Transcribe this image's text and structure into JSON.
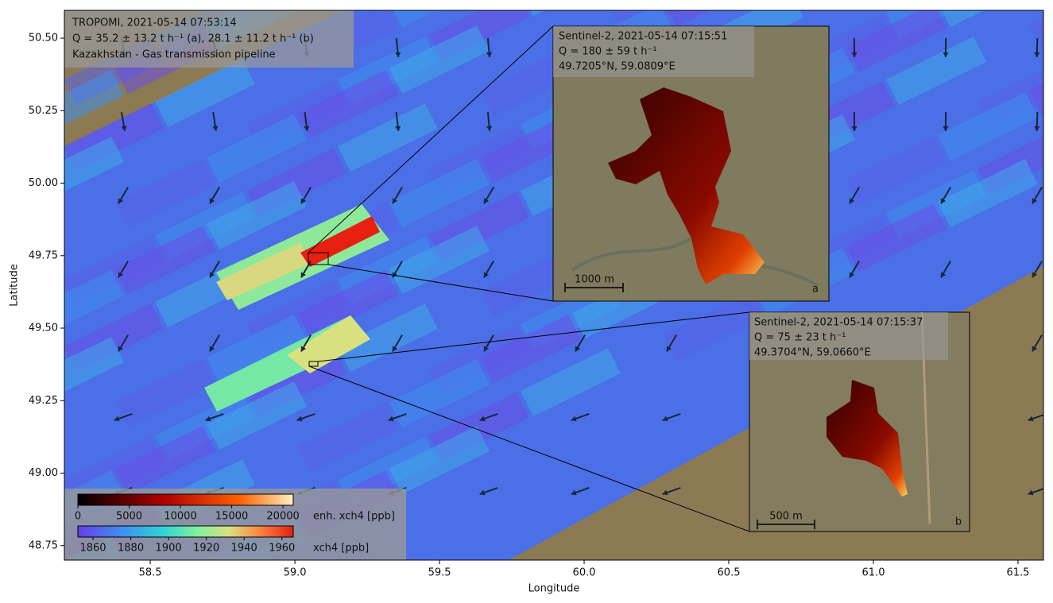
{
  "chart_data": {
    "type": "map",
    "xlabel": "Longitude",
    "ylabel": "Latitude",
    "xlim": [
      58.203,
      61.588
    ],
    "ylim": [
      48.7,
      50.596
    ],
    "xticks": [
      58.5,
      {
        "value": 59,
        "label": "59.0"
      },
      59.5,
      {
        "value": 60,
        "label": "60.0"
      },
      60.5,
      {
        "value": 61,
        "label": "61.0"
      },
      61.5
    ],
    "yticks": [
      48.75,
      {
        "value": 49,
        "label": "49.00"
      },
      49.25,
      {
        "value": 49.5,
        "label": "49.50"
      },
      49.75,
      {
        "value": 50,
        "label": "50.00"
      },
      50.25,
      {
        "value": 50.5,
        "label": "50.50"
      }
    ],
    "info": [
      "TROPOMI,  2021-05-14  07:53:14",
      "Q = 35.2 ± 13.2 t h⁻¹ (a),  28.1 ± 11.2 t h⁻¹ (b)",
      "Kazakhstan  -  Gas transmission pipeline"
    ],
    "insets": [
      {
        "lines": [
          "Sentinel-2,  2021-05-14  07:15:51",
          "Q = 180 ± 59 t h⁻¹",
          "49.7205°N, 59.0809°E"
        ],
        "scale_bar": "1000 m",
        "panel": "a"
      },
      {
        "lines": [
          "Sentinel-2,  2021-05-14  07:15:37",
          "Q = 75 ± 23 t h⁻¹",
          "49.3704°N, 59.0660°E"
        ],
        "scale_bar": "500 m",
        "panel": "b"
      }
    ],
    "colorbars": [
      {
        "label": "enh. xch4 [ppb]",
        "lim": [
          0,
          21000
        ],
        "ticks": [
          0,
          5000,
          10000,
          15000,
          20000
        ]
      },
      {
        "label": "xch4 [ppb]",
        "lim": [
          1852,
          1966
        ],
        "ticks": [
          1860,
          1880,
          1900,
          1920,
          1940,
          1960
        ]
      }
    ]
  }
}
